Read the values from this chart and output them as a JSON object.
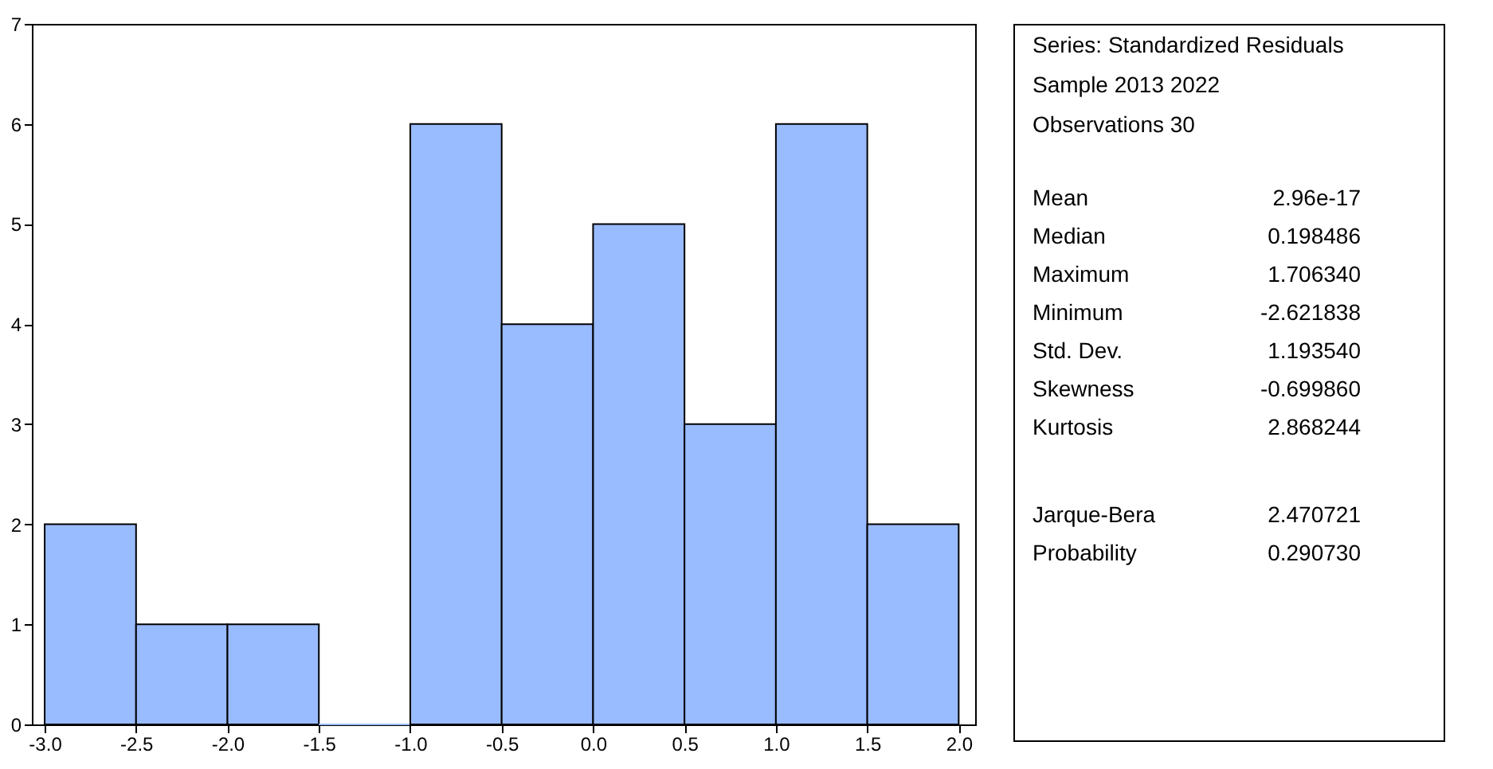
{
  "chart_data": [
    {
      "type": "histogram",
      "bins": [
        -3.0,
        -2.5,
        -2.0,
        -1.5,
        -1.0,
        -0.5,
        0.0,
        0.5,
        1.0,
        1.5,
        2.0
      ],
      "values": [
        2,
        1,
        1,
        0,
        6,
        4,
        5,
        3,
        6,
        2
      ],
      "color": "#99bbff",
      "xlim": [
        -3.07,
        2.09
      ],
      "ylim": [
        0,
        7
      ],
      "xticks": [
        {
          "value": -3,
          "label": "-3.0"
        },
        -2.5,
        {
          "value": -2,
          "label": "-2.0"
        },
        -1.5,
        {
          "value": -1,
          "label": "-1.0"
        },
        -0.5,
        {
          "value": 0,
          "label": "0.0"
        },
        0.5,
        {
          "value": 1,
          "label": "1.0"
        },
        1.5,
        {
          "value": 2,
          "label": "2.0"
        }
      ],
      "yticks": [
        0,
        1,
        2,
        3,
        4,
        5,
        6,
        7
      ],
      "grid": false
    },
    {
      "type": "other",
      "annotations": [
        "Series: Standardized Residuals",
        "Sample 2013 2022",
        "Observations 30",
        "Mean",
        "2.96e-17",
        "Median",
        "0.198486",
        "Maximum",
        "1.706340",
        "Minimum",
        "-2.621838",
        "Std. Dev.",
        "1.193540",
        "Skewness",
        "-0.699860",
        "Kurtosis",
        "2.868244",
        "Jarque-Bera",
        "2.470721",
        "Probability",
        "0.290730"
      ]
    }
  ]
}
